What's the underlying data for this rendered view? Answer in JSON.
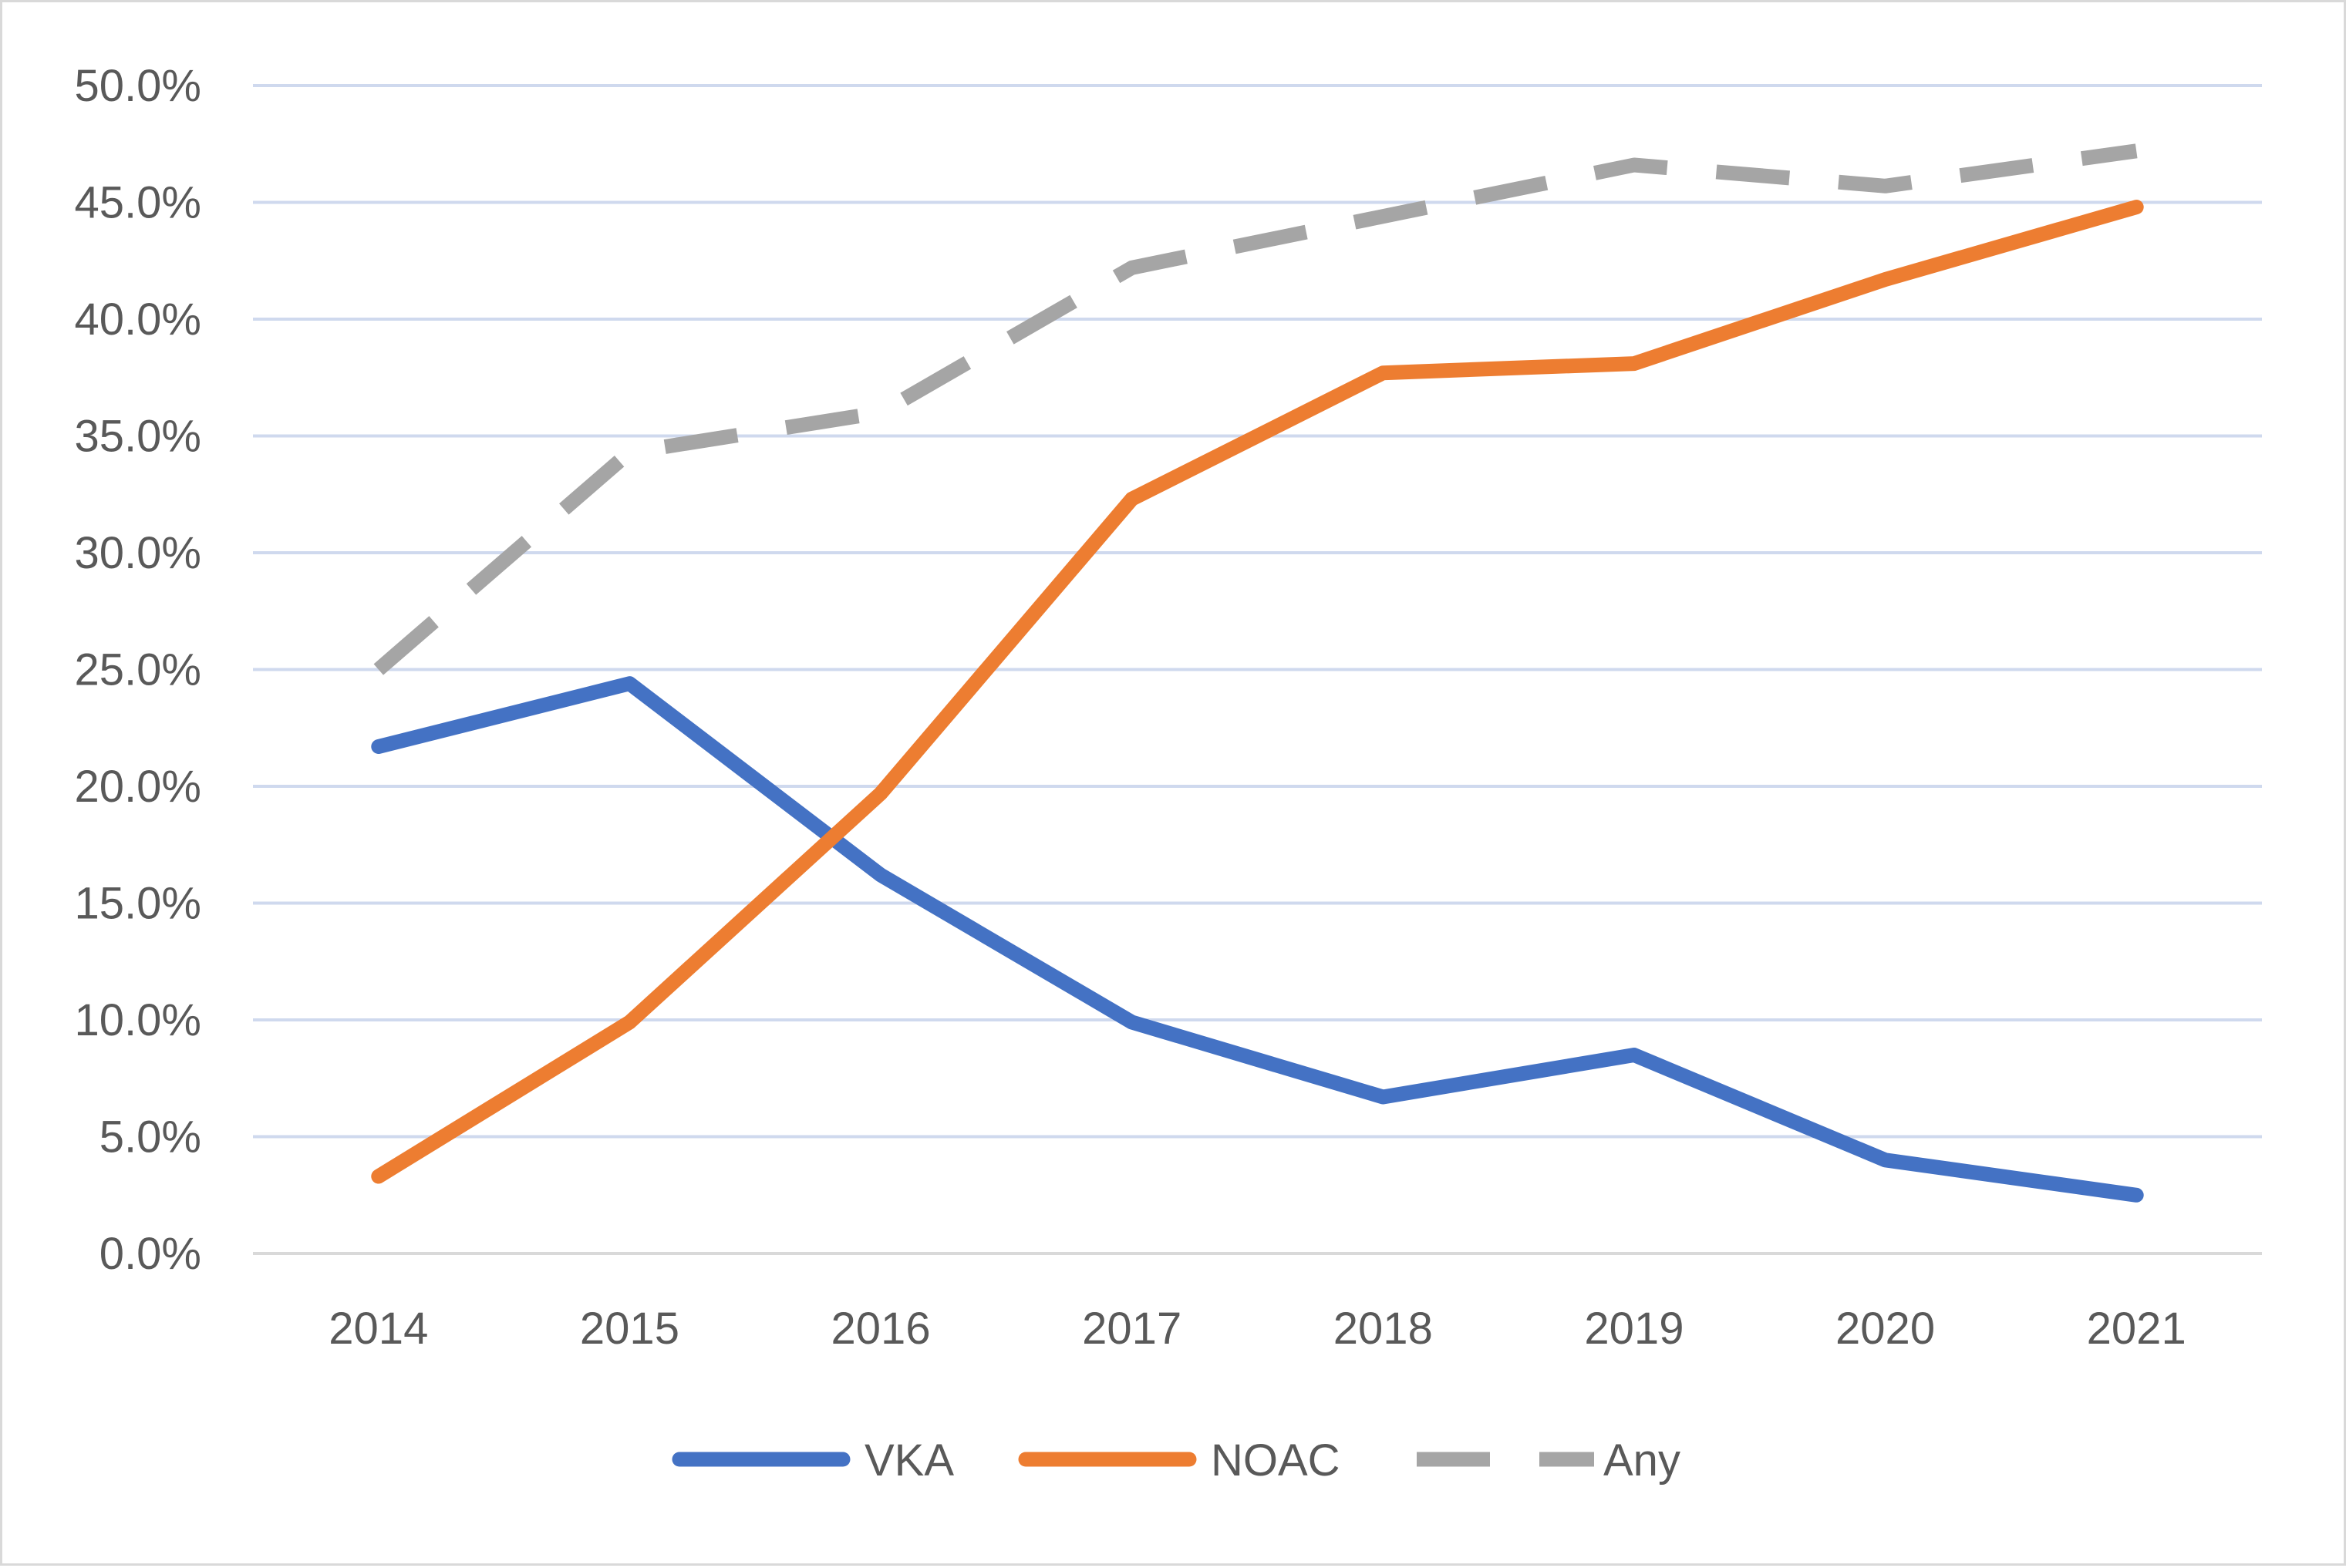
{
  "chart_data": {
    "type": "line",
    "title": "",
    "xlabel": "",
    "ylabel": "",
    "categories": [
      "2014",
      "2015",
      "2016",
      "2017",
      "2018",
      "2019",
      "2020",
      "2021"
    ],
    "y_ticks": [
      "0.0%",
      "5.0%",
      "10.0%",
      "15.0%",
      "20.0%",
      "25.0%",
      "30.0%",
      "35.0%",
      "40.0%",
      "45.0%",
      "50.0%"
    ],
    "ylim": [
      0,
      50
    ],
    "y_unit": "%",
    "grid": true,
    "legend_position": "bottom",
    "series": [
      {
        "name": "VKA",
        "color": "#4472c4",
        "line_style": "solid",
        "values": [
          21.7,
          24.4,
          16.2,
          9.9,
          6.7,
          8.5,
          4.0,
          2.5
        ]
      },
      {
        "name": "NOAC",
        "color": "#ed7d31",
        "line_style": "solid",
        "values": [
          3.3,
          9.9,
          19.7,
          32.3,
          37.7,
          38.1,
          41.7,
          44.8
        ]
      },
      {
        "name": "Any",
        "color": "#a5a5a5",
        "line_style": "dashed",
        "values": [
          25.0,
          34.3,
          36.0,
          42.2,
          44.4,
          46.6,
          45.7,
          47.2
        ]
      }
    ]
  }
}
